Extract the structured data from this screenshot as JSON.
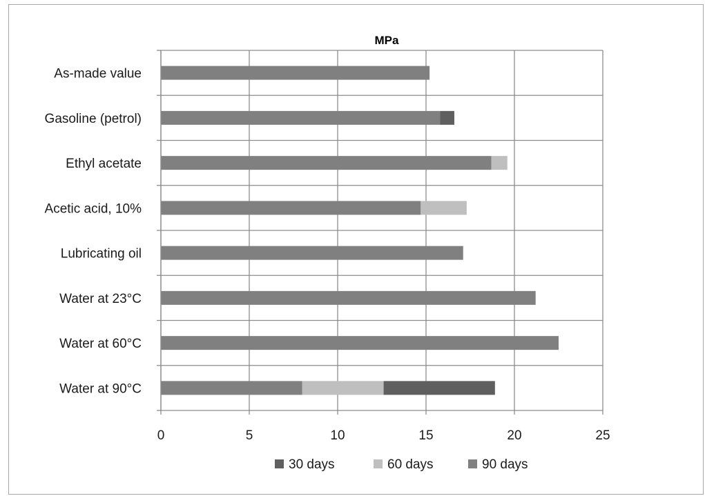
{
  "chart_data": {
    "type": "bar",
    "orientation": "horizontal",
    "stacked": true,
    "title": "MPa",
    "xlabel": "",
    "ylabel": "",
    "xlim": [
      0,
      25
    ],
    "ticks": [
      "0",
      "5",
      "10",
      "15",
      "20",
      "25"
    ],
    "grid": true,
    "legend_position": "bottom",
    "categories": [
      "As-made value",
      "Gasoline (petrol)",
      "Ethyl acetate",
      "Acetic acid, 10%",
      "Lubricating oil",
      "Water at 23°C",
      "Water at 60°C",
      "Water at 90°C"
    ],
    "series": [
      {
        "name": "90 days",
        "color": "#808080",
        "values": [
          15.2,
          15.8,
          18.7,
          14.7,
          17.1,
          21.2,
          22.5,
          8.0
        ]
      },
      {
        "name": "60 days",
        "color": "#bfbfbf",
        "values": [
          0,
          0,
          0.9,
          2.6,
          0,
          0,
          0,
          4.6
        ]
      },
      {
        "name": "30 days",
        "color": "#5f5f5f",
        "values": [
          0,
          0.8,
          0,
          0,
          0,
          0,
          0,
          6.3
        ]
      }
    ],
    "legend_order": [
      "30 days",
      "60 days",
      "90 days"
    ]
  }
}
